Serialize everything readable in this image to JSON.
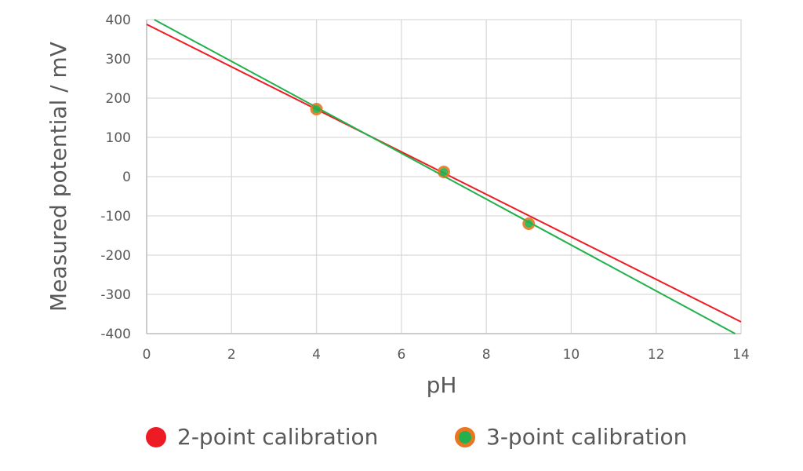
{
  "chart_data": {
    "type": "scatter",
    "title": "",
    "xlabel": "pH",
    "ylabel": "Measured potential / mV",
    "xlim": [
      0,
      14
    ],
    "ylim": [
      -400,
      400
    ],
    "x_ticks": [
      "0",
      "2",
      "4",
      "6",
      "8",
      "10",
      "12",
      "14"
    ],
    "y_ticks": [
      "400",
      "300",
      "200",
      "100",
      "0",
      "-100",
      "-200",
      "-300",
      "-400"
    ],
    "grid": true,
    "legend_position": "bottom",
    "points": {
      "x": [
        4,
        7,
        9
      ],
      "y": [
        172,
        12,
        -120
      ],
      "marker_fill": "#22B14C",
      "marker_edge": "#E87722"
    },
    "series": [
      {
        "name": "2-point calibration",
        "type": "line",
        "color": "#ED1C24",
        "x": [
          0,
          14
        ],
        "y": [
          388,
          -370
        ]
      },
      {
        "name": "3-point calibration",
        "type": "line",
        "color": "#22B14C",
        "marker_edge": "#E87722",
        "x": [
          0.18,
          13.86
        ],
        "y": [
          400,
          -400
        ]
      }
    ]
  },
  "legend": {
    "item1": "2-point calibration",
    "item2": "3-point calibration"
  }
}
